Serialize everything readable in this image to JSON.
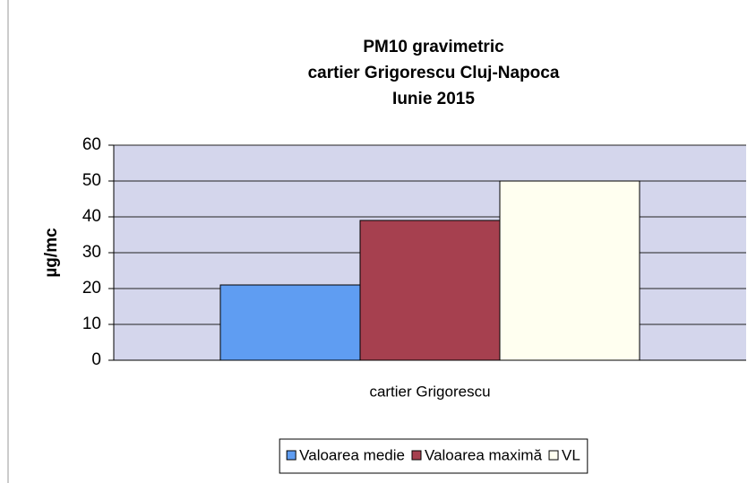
{
  "chart_data": {
    "type": "bar",
    "title": [
      "PM10 gravimetric",
      "cartier Grigorescu Cluj-Napoca",
      "Iunie 2015"
    ],
    "y_label": "µg/mc",
    "categories": [
      "cartier Grigorescu"
    ],
    "series": [
      {
        "name": "Valoarea medie",
        "color": "#5f9df2",
        "values": [
          21
        ]
      },
      {
        "name": "Valoarea maximă",
        "color": "#a6404f",
        "values": [
          39
        ]
      },
      {
        "name": "VL",
        "color": "#fffff0",
        "values": [
          50
        ]
      }
    ],
    "ylim": [
      0,
      60
    ],
    "yticks": [
      0,
      10,
      20,
      30,
      40,
      50,
      60
    ],
    "grid": true,
    "legend": "bottom"
  }
}
